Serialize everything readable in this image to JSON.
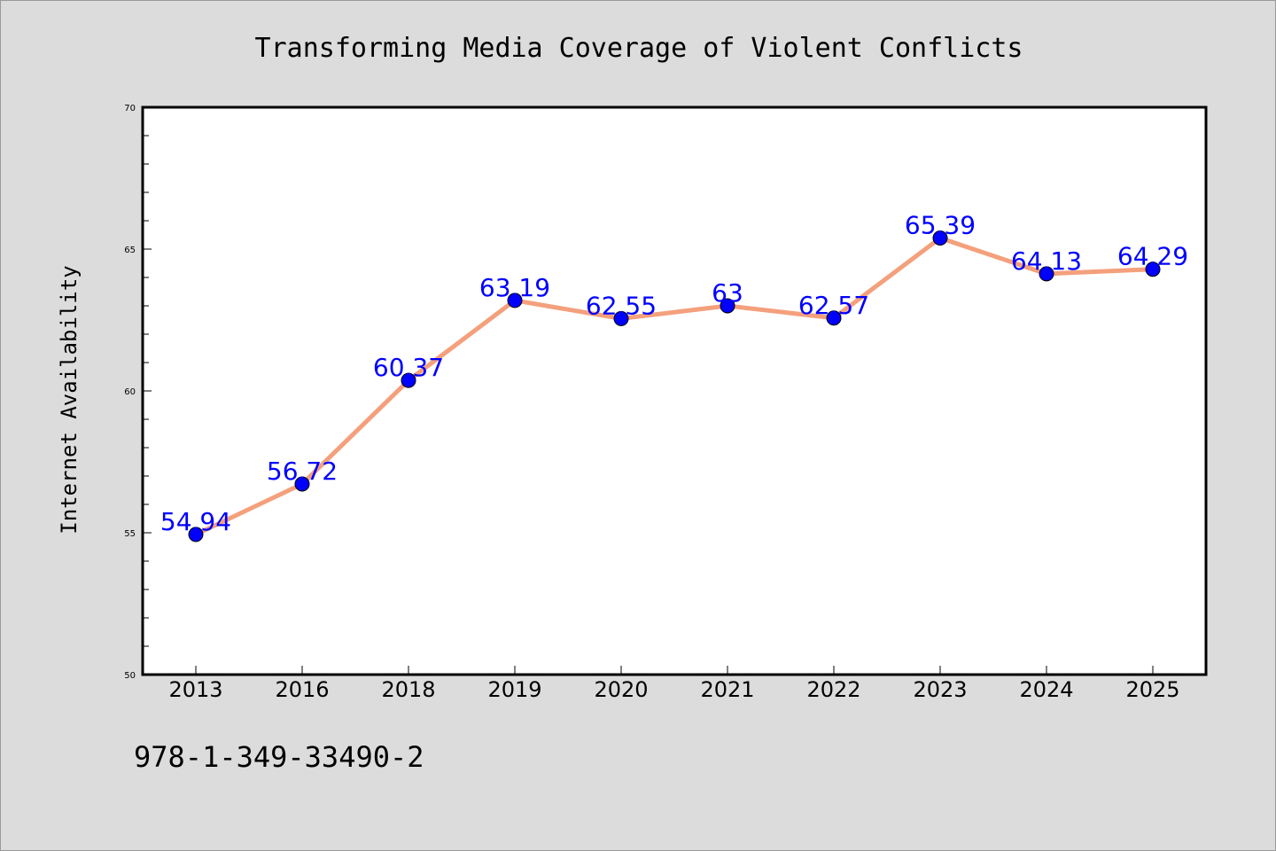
{
  "chart_data": {
    "type": "line",
    "title": "Transforming Media Coverage of Violent Conflicts",
    "xlabel": "",
    "ylabel": "Internet Availability",
    "categories": [
      "2013",
      "2016",
      "2018",
      "2019",
      "2020",
      "2021",
      "2022",
      "2023",
      "2024",
      "2025"
    ],
    "series": [
      {
        "values": [
          54.94,
          56.72,
          60.37,
          63.19,
          62.55,
          63,
          62.57,
          65.39,
          64.13,
          64.29
        ],
        "data_labels": [
          "54.94",
          "56.72",
          "60.37",
          "63.19",
          "62.55",
          "63",
          "62.57",
          "65.39",
          "64.13",
          "64.29"
        ]
      }
    ],
    "ylim": [
      50,
      70
    ],
    "y_ticks": [
      "50",
      "55",
      "60",
      "65",
      "70"
    ],
    "y_minor_step": 1,
    "grid": false,
    "legend": "none",
    "footer_text": "978-1-349-33490-2",
    "colors": {
      "background": "#dcdcdc",
      "plot_area": "#ffffff",
      "line": "#f4a07c",
      "marker": "#0000ff",
      "data_label": "#0000ff",
      "text": "#000000"
    }
  }
}
